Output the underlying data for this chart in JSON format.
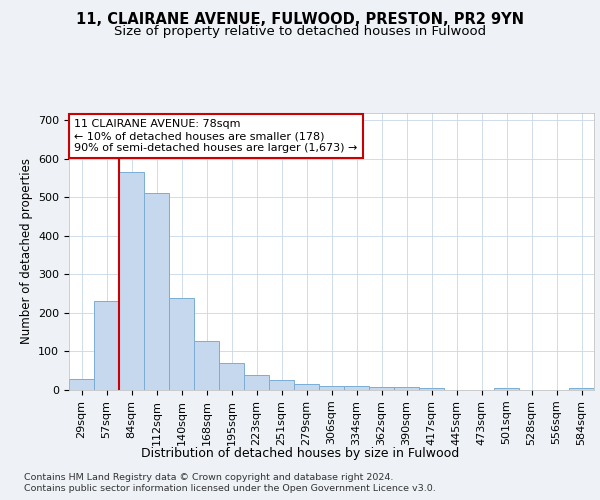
{
  "title1": "11, CLAIRANE AVENUE, FULWOOD, PRESTON, PR2 9YN",
  "title2": "Size of property relative to detached houses in Fulwood",
  "xlabel": "Distribution of detached houses by size in Fulwood",
  "ylabel": "Number of detached properties",
  "footer1": "Contains HM Land Registry data © Crown copyright and database right 2024.",
  "footer2": "Contains public sector information licensed under the Open Government Licence v3.0.",
  "bin_labels": [
    "29sqm",
    "57sqm",
    "84sqm",
    "112sqm",
    "140sqm",
    "168sqm",
    "195sqm",
    "223sqm",
    "251sqm",
    "279sqm",
    "306sqm",
    "334sqm",
    "362sqm",
    "390sqm",
    "417sqm",
    "445sqm",
    "473sqm",
    "501sqm",
    "528sqm",
    "556sqm",
    "584sqm"
  ],
  "bar_values": [
    28,
    230,
    565,
    510,
    240,
    128,
    70,
    40,
    27,
    15,
    10,
    10,
    8,
    8,
    5,
    0,
    0,
    5,
    0,
    0,
    5
  ],
  "bar_color": "#c5d8ee",
  "bar_edge_color": "#7aadd4",
  "vline_x_index": 2,
  "vline_color": "#cc0000",
  "annotation_line1": "11 CLAIRANE AVENUE: 78sqm",
  "annotation_line2": "← 10% of detached houses are smaller (178)",
  "annotation_line3": "90% of semi-detached houses are larger (1,673) →",
  "annotation_box_color": "#ffffff",
  "annotation_box_edge": "#cc0000",
  "ylim": [
    0,
    720
  ],
  "yticks": [
    0,
    100,
    200,
    300,
    400,
    500,
    600,
    700
  ],
  "background_color": "#eef2f7",
  "plot_background": "#ffffff",
  "grid_color": "#c8d8e8",
  "title1_fontsize": 10.5,
  "title2_fontsize": 9.5,
  "xlabel_fontsize": 9,
  "ylabel_fontsize": 8.5,
  "tick_fontsize": 8,
  "footer_fontsize": 6.8
}
